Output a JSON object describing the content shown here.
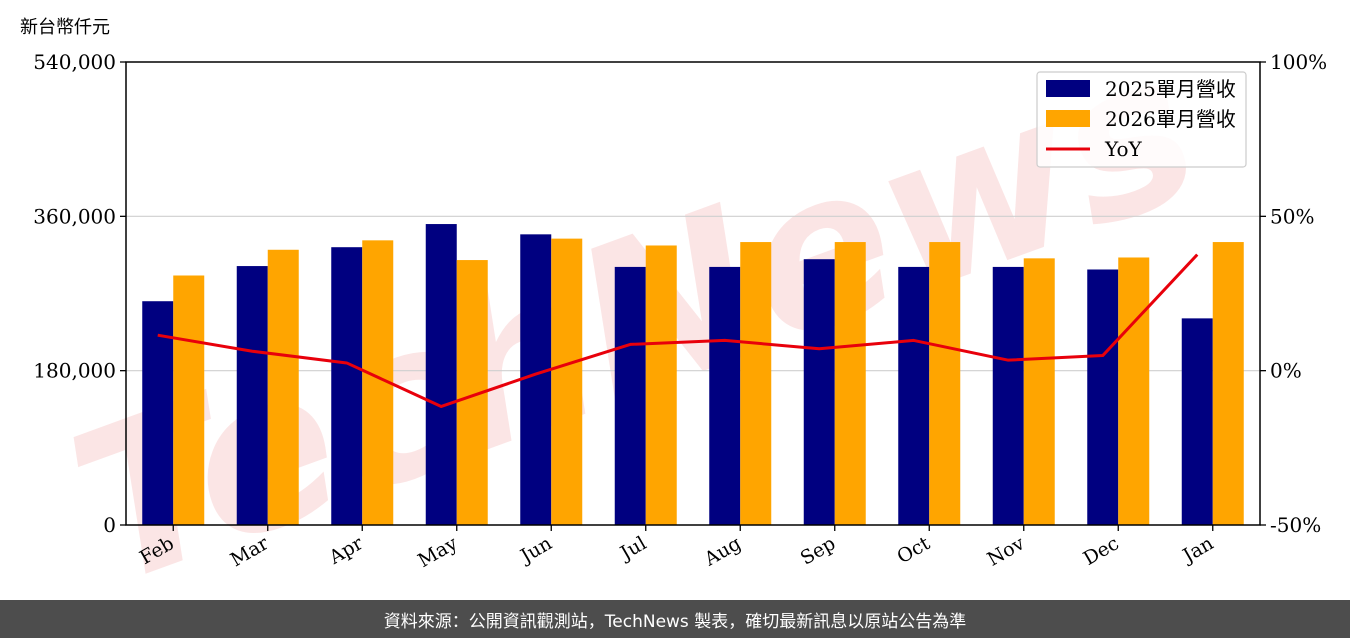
{
  "chart_data": {
    "type": "bar",
    "unit_label": "新台幣仟元",
    "categories": [
      "Feb",
      "Mar",
      "Apr",
      "May",
      "Jun",
      "Jul",
      "Aug",
      "Sep",
      "Oct",
      "Nov",
      "Dec",
      "Jan"
    ],
    "series": [
      {
        "name": "2025單月營收",
        "color": "#000080",
        "values": [
          261000,
          302000,
          324000,
          351000,
          339000,
          301000,
          301000,
          310000,
          301000,
          301000,
          298000,
          241000
        ]
      },
      {
        "name": "2026單月營收",
        "color": "#ffa500",
        "values": [
          291000,
          321000,
          332000,
          309000,
          334000,
          326000,
          330000,
          330000,
          330000,
          311000,
          312000,
          330000
        ]
      }
    ],
    "line_series": {
      "name": "YoY",
      "color": "#e8000b",
      "values": [
        11.5,
        6.3,
        2.5,
        -11.6,
        -1.1,
        8.5,
        9.8,
        7.1,
        9.8,
        3.4,
        4.9,
        37.6
      ]
    },
    "y_left": {
      "ylim": [
        0,
        540000
      ],
      "ticks": [
        "0",
        "180,000",
        "360,000",
        "540,000"
      ],
      "tick_values": [
        0,
        180000,
        360000,
        540000
      ]
    },
    "y_right": {
      "ylim": [
        -50,
        100
      ],
      "ticks": [
        "-50%",
        "0%",
        "50%",
        "100%"
      ],
      "tick_values": [
        -50,
        0,
        50,
        100
      ]
    },
    "grid": "horizontal",
    "legend_position": "top-right",
    "legend": [
      {
        "label": "2025單月營收",
        "kind": "bar",
        "color": "#000080"
      },
      {
        "label": "2026單月營收",
        "kind": "bar",
        "color": "#ffa500"
      },
      {
        "label": "YoY",
        "kind": "line",
        "color": "#e8000b"
      }
    ],
    "watermark": "TechNews"
  },
  "footer": {
    "text": "資料來源：公開資訊觀測站，TechNews 製表，確切最新訊息以原站公告為準"
  }
}
